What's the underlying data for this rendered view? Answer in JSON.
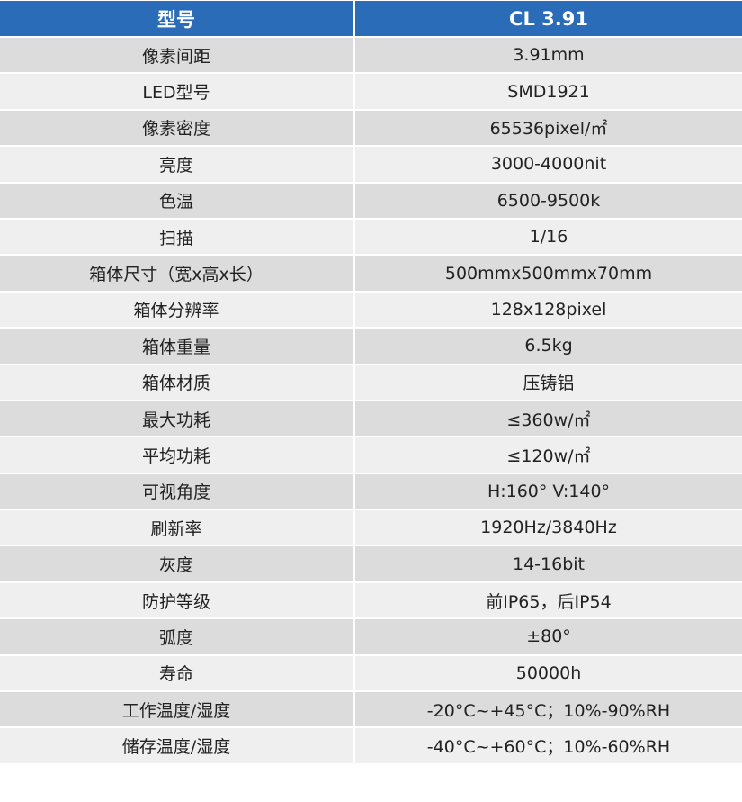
{
  "header": {
    "col1": "型号",
    "col2": "CL 3.91"
  },
  "colors": {
    "header_bg": "#2b6cb8",
    "row_dark": "#dcdcdc",
    "row_light": "#efefef"
  },
  "rows": [
    {
      "label": "像素间距",
      "value": "3.91mm"
    },
    {
      "label": "LED型号",
      "value": "SMD1921"
    },
    {
      "label": "像素密度",
      "value": "65536pixel/㎡"
    },
    {
      "label": "亮度",
      "value": "3000-4000nit"
    },
    {
      "label": "色温",
      "value": "6500-9500k"
    },
    {
      "label": "扫描",
      "value": "1/16"
    },
    {
      "label": "箱体尺寸（宽x高x长）",
      "value": "500mmx500mmx70mm"
    },
    {
      "label": "箱体分辨率",
      "value": "128x128pixel"
    },
    {
      "label": "箱体重量",
      "value": "6.5kg"
    },
    {
      "label": "箱体材质",
      "value": "压铸铝"
    },
    {
      "label": "最大功耗",
      "value": "≤360w/㎡"
    },
    {
      "label": "平均功耗",
      "value": "≤120w/㎡"
    },
    {
      "label": "可视角度",
      "value": "H:160° V:140°"
    },
    {
      "label": "刷新率",
      "value": "1920Hz/3840Hz"
    },
    {
      "label": "灰度",
      "value": "14-16bit"
    },
    {
      "label": "防护等级",
      "value": "前IP65，后IP54"
    },
    {
      "label": "弧度",
      "value": "±80°"
    },
    {
      "label": "寿命",
      "value": "50000h"
    },
    {
      "label": "工作温度/湿度",
      "value": "-20°C~+45°C；10%-90%RH"
    },
    {
      "label": "储存温度/湿度",
      "value": "-40°C~+60°C；10%-60%RH"
    }
  ]
}
